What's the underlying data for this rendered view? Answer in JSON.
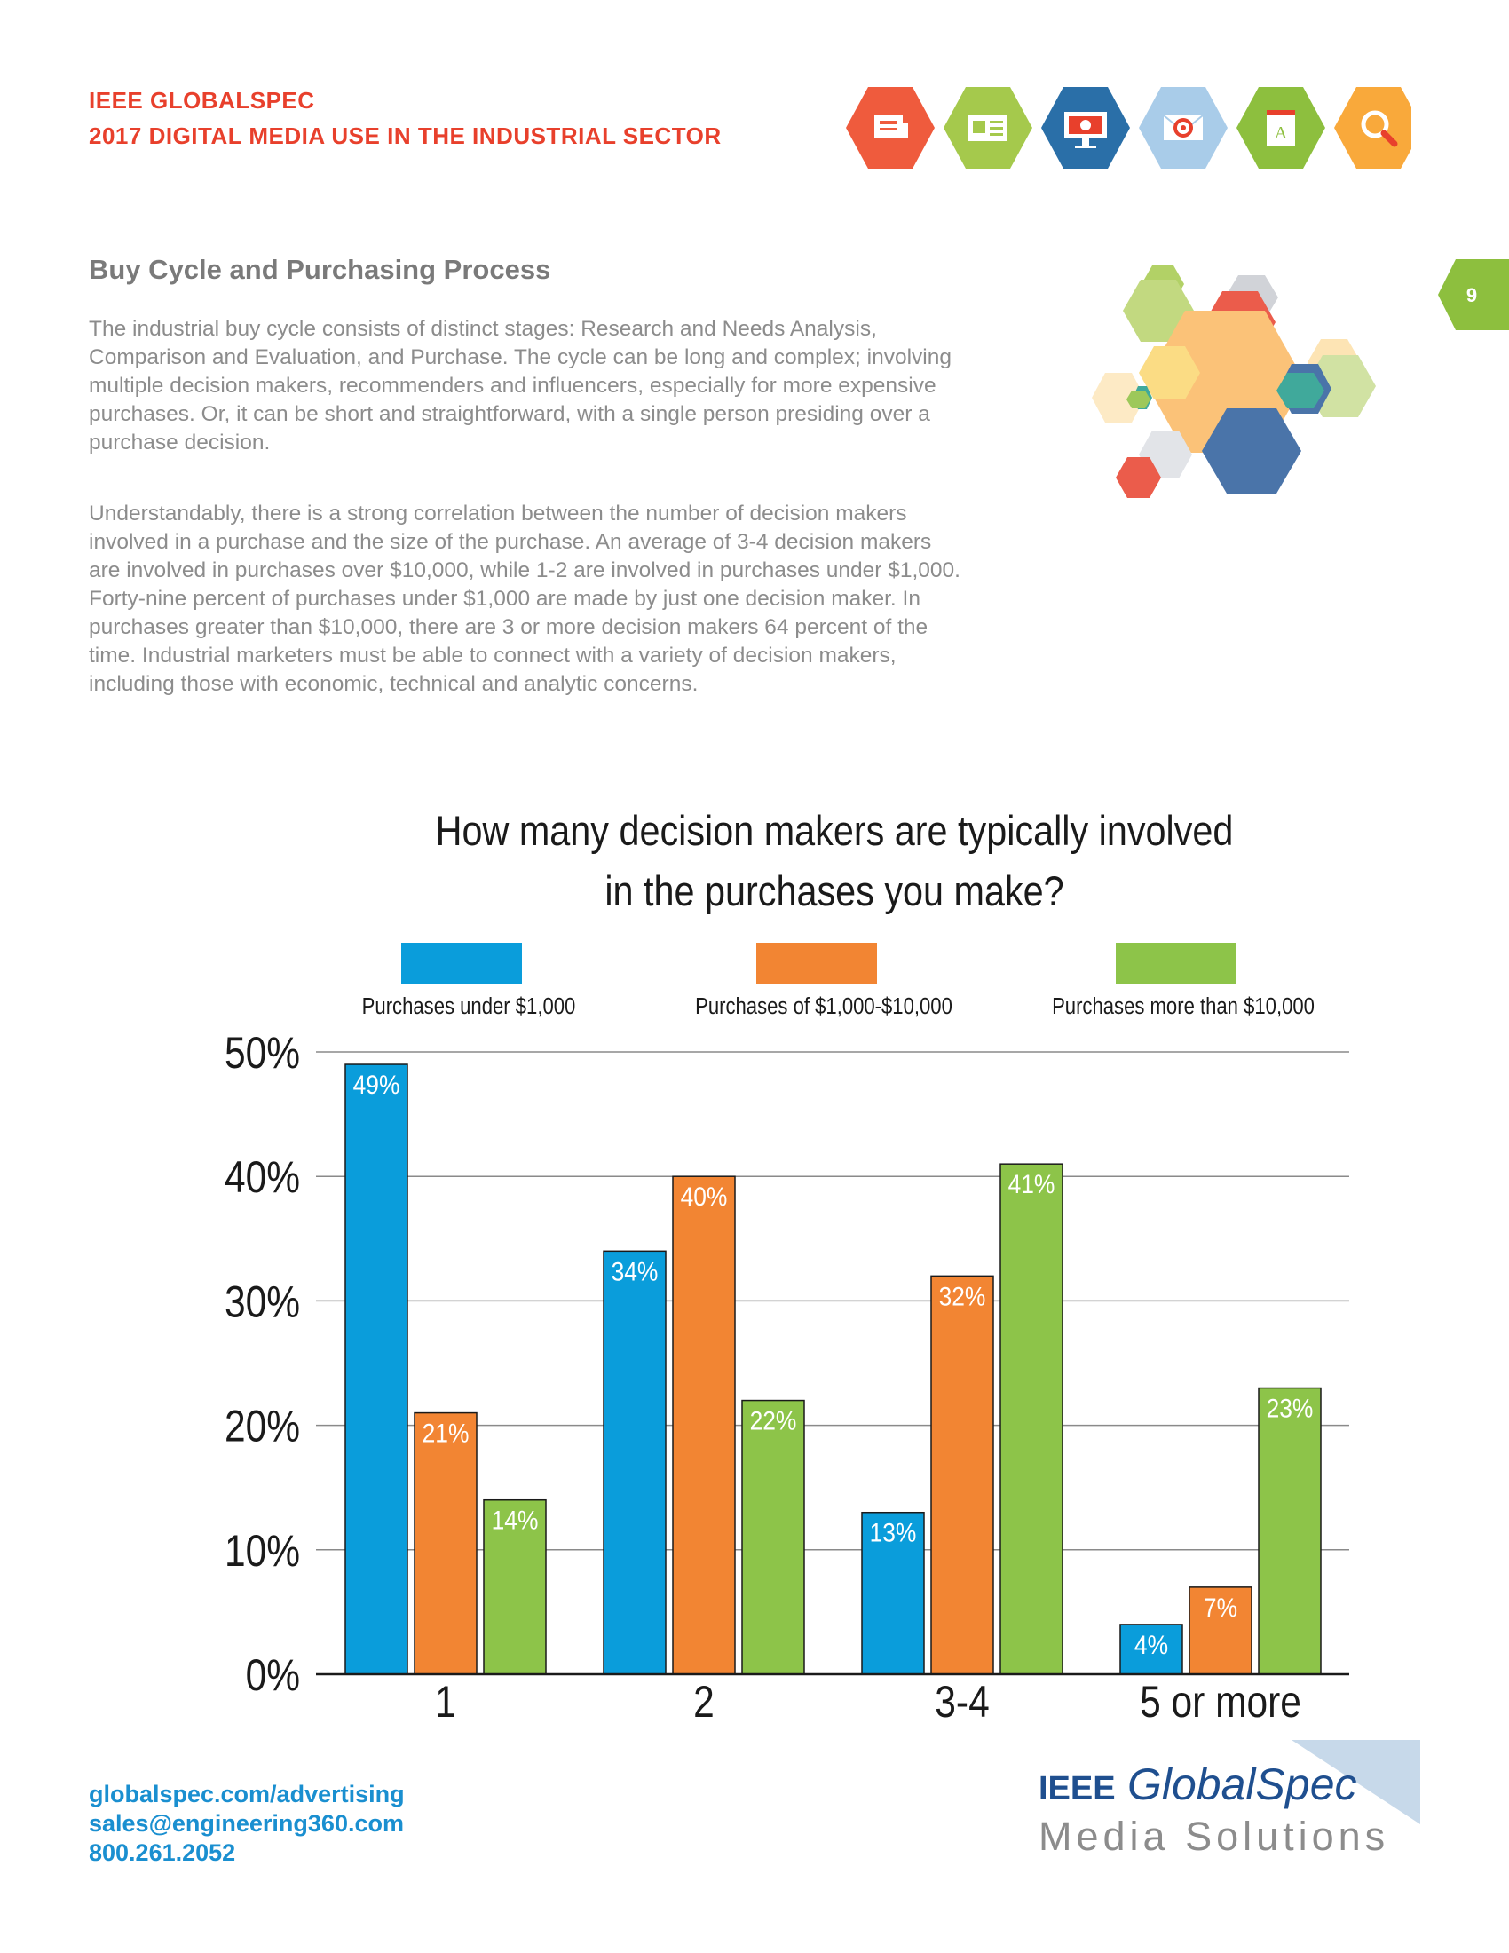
{
  "header": {
    "line1": "IEEE GLOBALSPEC",
    "line2": "2017 DIGITAL MEDIA USE IN THE INDUSTRIAL SECTOR",
    "icons": [
      {
        "name": "newspaper-icon",
        "color": "#ef5b3d"
      },
      {
        "name": "webpage-icon",
        "color": "#a5c94c"
      },
      {
        "name": "monitor-icon",
        "color": "#2a6fa8"
      },
      {
        "name": "email-target-icon",
        "color": "#a9cce9"
      },
      {
        "name": "book-icon",
        "color": "#8dbf3e"
      },
      {
        "name": "search-icon",
        "color": "#f9a93b"
      }
    ]
  },
  "page_number": "9",
  "section": {
    "title": "Buy Cycle and Purchasing Process",
    "paragraph1": "The industrial buy cycle consists of distinct stages: Research and Needs Analysis, Comparison and Evaluation, and Purchase. The cycle can be long and complex; involving multiple decision makers, recommenders and influencers, especially for more expensive purchases. Or, it can be short and straightforward, with a single person presiding over a purchase decision.",
    "paragraph2": "Understandably, there is a strong correlation between the number of decision makers involved in a purchase and the size of the purchase. An average of 3-4 decision makers are involved in purchases over $10,000, while 1-2 are involved in purchases under $1,000. Forty-nine percent of purchases under $1,000 are made by just one decision maker. In purchases greater than $10,000, there are 3 or more decision makers 64 percent of the time. Industrial marketers must be able to connect with a variety of decision makers, including those with economic, technical and analytic concerns."
  },
  "chart_data": {
    "type": "bar",
    "title": "How many decision makers are typically involved in the purchases you make?",
    "title_line1": "How many decision makers are typically involved",
    "title_line2": "in the purchases you make?",
    "categories": [
      "1",
      "2",
      "3-4",
      "5 or more"
    ],
    "series": [
      {
        "name": "Purchases under $1,000",
        "color": "#0a9ddb",
        "values": [
          49,
          34,
          13,
          4
        ]
      },
      {
        "name": "Purchases of $1,000-$10,000",
        "color": "#f28533",
        "values": [
          21,
          40,
          32,
          7
        ]
      },
      {
        "name": "Purchases more than $10,000",
        "color": "#8dc449",
        "values": [
          14,
          22,
          41,
          23
        ]
      }
    ],
    "yticks": [
      "0%",
      "10%",
      "20%",
      "30%",
      "40%",
      "50%"
    ],
    "ylim": [
      0,
      50
    ],
    "value_suffix": "%",
    "grid": true,
    "legend_position": "top"
  },
  "footer": {
    "website": "globalspec.com/advertising",
    "email": "sales@engineering360.com",
    "phone": "800.261.2052",
    "logo_prefix": "IEEE",
    "logo_brand": "GlobalSpec",
    "logo_tagline": "Media Solutions"
  }
}
